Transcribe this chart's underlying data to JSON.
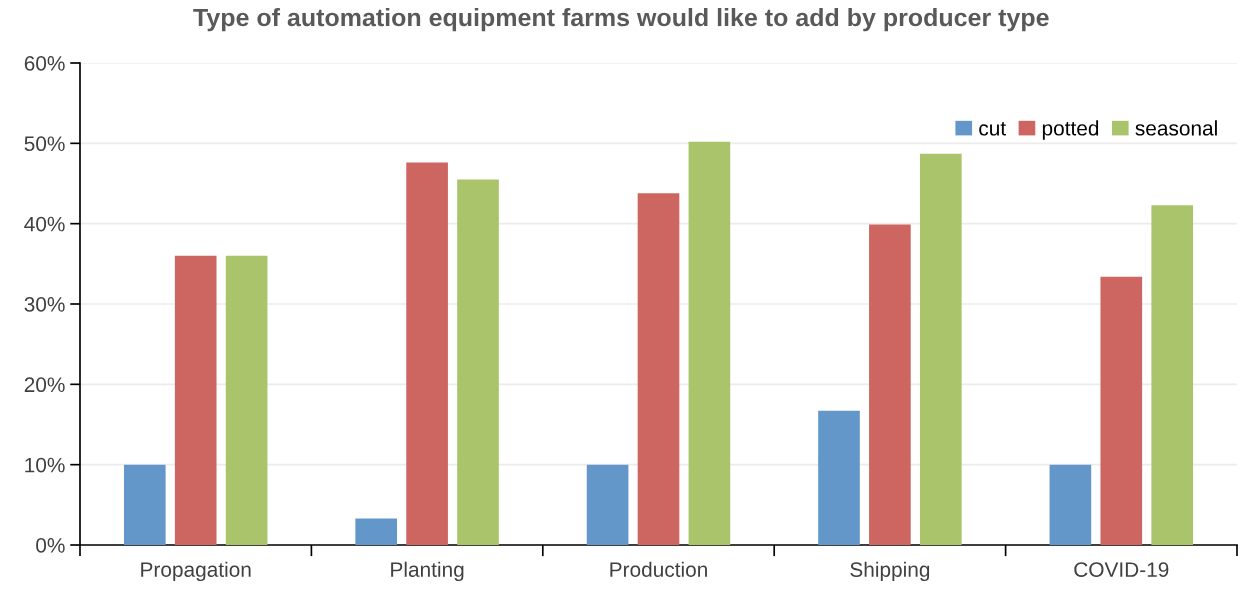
{
  "chart_data": {
    "type": "bar",
    "title": "Type of automation equipment farms would like to add by producer type",
    "categories": [
      "Propagation",
      "Planting",
      "Production",
      "Shipping",
      "COVID-19"
    ],
    "series": [
      {
        "name": "cut",
        "color": "#6497c9",
        "values": [
          10,
          3.3,
          10,
          16.7,
          10
        ]
      },
      {
        "name": "potted",
        "color": "#cd6660",
        "values": [
          36,
          47.6,
          43.8,
          39.9,
          33.4
        ]
      },
      {
        "name": "seasonal",
        "color": "#a9c46a",
        "values": [
          36,
          45.5,
          50.2,
          48.7,
          42.3
        ]
      }
    ],
    "ylim": [
      0,
      60
    ],
    "yticks": [
      {
        "value": 0,
        "label": "0%"
      },
      {
        "value": 10,
        "label": "10%"
      },
      {
        "value": 20,
        "label": "20%"
      },
      {
        "value": 30,
        "label": "30%"
      },
      {
        "value": 40,
        "label": "40%"
      },
      {
        "value": 50,
        "label": "50%"
      },
      {
        "value": 60,
        "label": "60%"
      }
    ],
    "grid": "y",
    "legend": "top right"
  }
}
